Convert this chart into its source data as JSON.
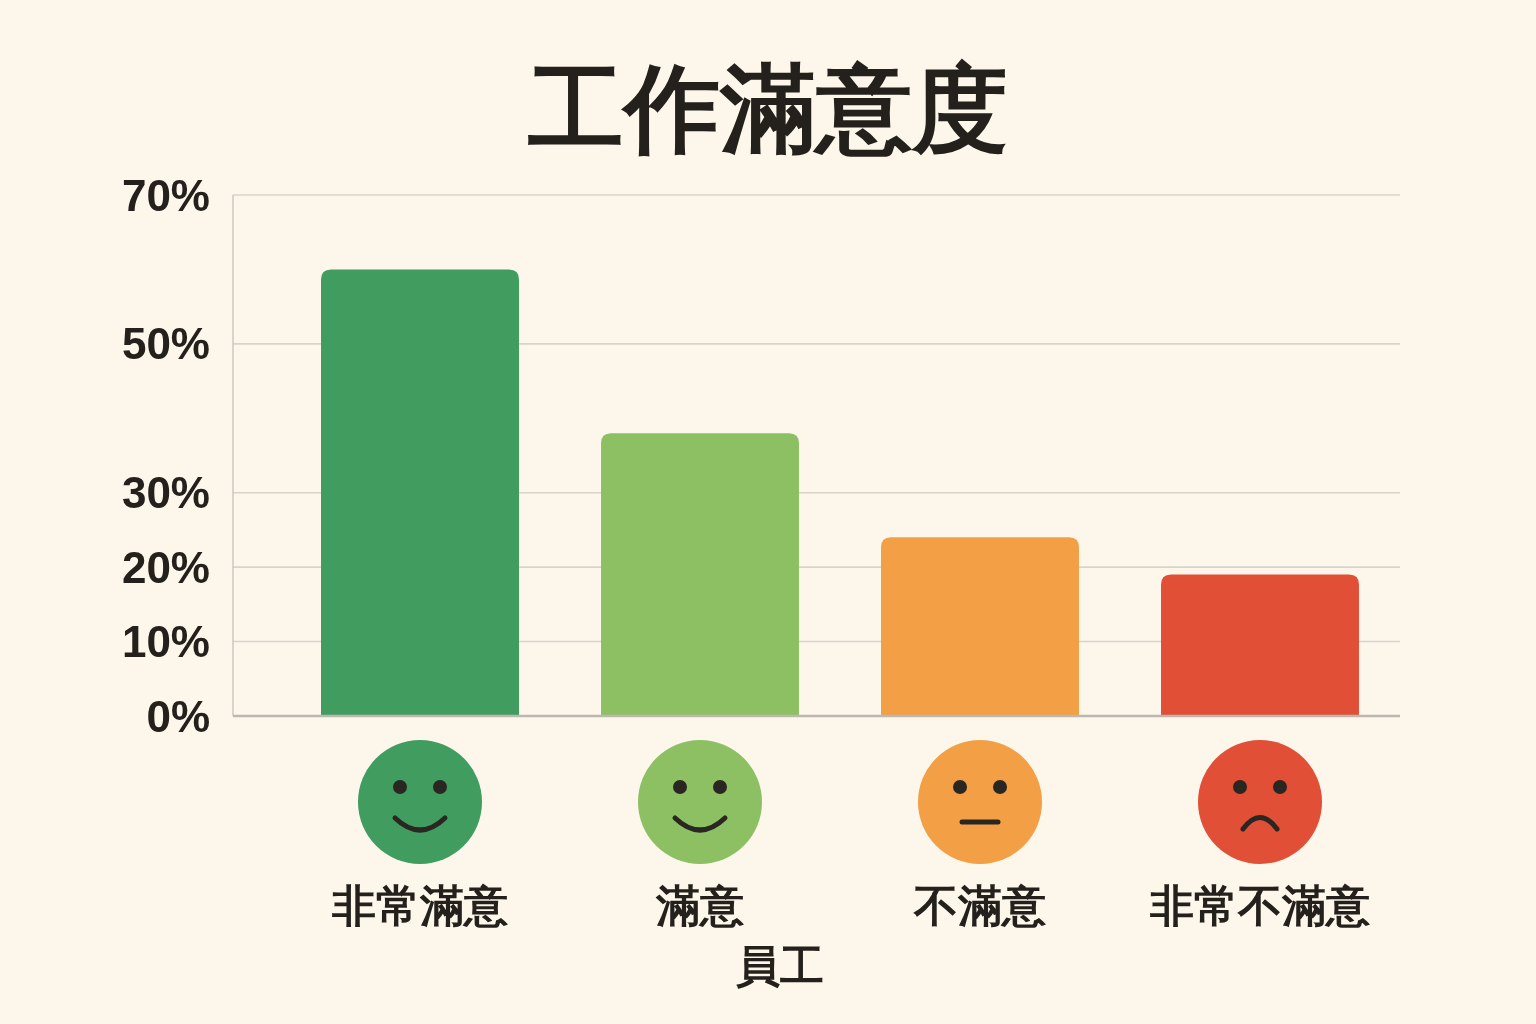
{
  "chart_data": {
    "type": "bar",
    "title": "工作滿意度",
    "xlabel": "員工",
    "categories": [
      "非常滿意",
      "滿意",
      "不滿意",
      "非常不滿意"
    ],
    "values": [
      60,
      38,
      24,
      19
    ],
    "colors": [
      "#409c5f",
      "#8dc063",
      "#f29f45",
      "#e04f36"
    ],
    "ylim": [
      0,
      70
    ],
    "yticks": [
      {
        "value": 0,
        "label": "0%"
      },
      {
        "value": 10,
        "label": "10%"
      },
      {
        "value": 20,
        "label": "20%"
      },
      {
        "value": 30,
        "label": "30%"
      },
      {
        "value": 50,
        "label": "50%"
      },
      {
        "value": 70,
        "label": "70%"
      }
    ],
    "grid": "y"
  }
}
